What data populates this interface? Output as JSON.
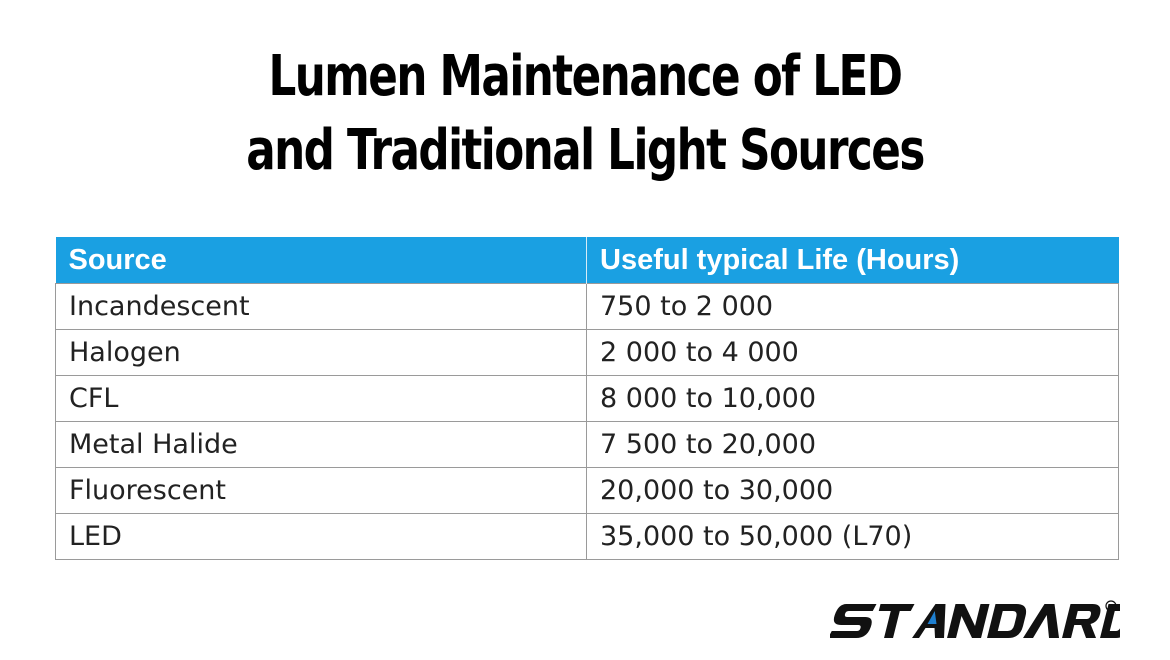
{
  "title": {
    "line1": "Lumen Maintenance of LED",
    "line2": "and Traditional Light Sources"
  },
  "table": {
    "headers": [
      "Source",
      "Useful typical Life (Hours)"
    ],
    "rows": [
      [
        "Incandescent",
        "750 to 2 000"
      ],
      [
        "Halogen",
        "2 000 to 4 000"
      ],
      [
        "CFL",
        "8 000 to 10,000"
      ],
      [
        "Metal Halide",
        "7 500 to 20,000"
      ],
      [
        "Fluorescent",
        "20,000 to 30,000"
      ],
      [
        "LED",
        "35,000 to 50,000 (L70)"
      ]
    ]
  },
  "logo": {
    "text": "STANDARD",
    "mark": "®",
    "text_color": "#111111",
    "accent_color": "#1e7fd0"
  },
  "colors": {
    "header_bg": "#1aa0e2",
    "header_text": "#ffffff",
    "border": "#9a9a9a"
  }
}
